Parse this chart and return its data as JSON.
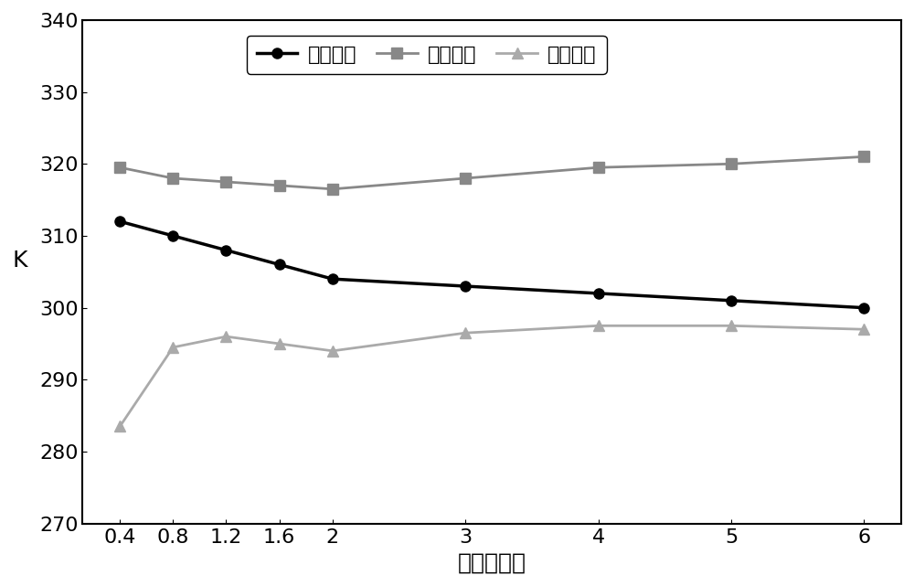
{
  "x": [
    0.4,
    0.8,
    1.2,
    1.6,
    2,
    3,
    4,
    5,
    6
  ],
  "surface_temp": [
    312,
    310,
    308,
    306,
    304,
    303,
    302,
    301,
    300
  ],
  "bare_land_temp": [
    319.5,
    318,
    317.5,
    317,
    316.5,
    318,
    319.5,
    320,
    321
  ],
  "vegetation_temp": [
    283.5,
    294.5,
    296,
    295,
    294,
    296.5,
    297.5,
    297.5,
    297
  ],
  "xlabel": "叶面积指数",
  "ylabel": "K",
  "ylim": [
    270,
    340
  ],
  "yticks": [
    270,
    280,
    290,
    300,
    310,
    320,
    330,
    340
  ],
  "legend_surface": "地表温度",
  "legend_bare": "裸地温度",
  "legend_veg": "植被温度",
  "surface_color": "#000000",
  "bare_color": "#888888",
  "veg_color": "#aaaaaa",
  "surface_linewidth": 2.5,
  "bare_linewidth": 2.0,
  "veg_linewidth": 2.0,
  "marker_size": 8,
  "tick_font_size": 16,
  "label_font_size": 18,
  "legend_font_size": 16
}
